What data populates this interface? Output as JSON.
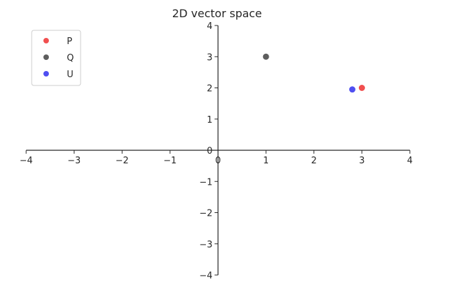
{
  "chart_data": {
    "type": "scatter",
    "title": "2D vector space",
    "xlabel": "",
    "ylabel": "",
    "xlim": [
      -4,
      4
    ],
    "ylim": [
      -4,
      4
    ],
    "x_ticks": [
      {
        "value": -4,
        "label": "−4"
      },
      {
        "value": -3,
        "label": "−3"
      },
      {
        "value": -2,
        "label": "−2"
      },
      {
        "value": -1,
        "label": "−1"
      },
      {
        "value": 0,
        "label": "0"
      },
      {
        "value": 1,
        "label": "1"
      },
      {
        "value": 2,
        "label": "2"
      },
      {
        "value": 3,
        "label": "3"
      },
      {
        "value": 4,
        "label": "4"
      }
    ],
    "y_ticks": [
      {
        "value": -4,
        "label": "−4"
      },
      {
        "value": -3,
        "label": "−3"
      },
      {
        "value": -2,
        "label": "−2"
      },
      {
        "value": -1,
        "label": "−1"
      },
      {
        "value": 0,
        "label": "0"
      },
      {
        "value": 1,
        "label": "1"
      },
      {
        "value": 2,
        "label": "2"
      },
      {
        "value": 3,
        "label": "3"
      },
      {
        "value": 4,
        "label": "4"
      }
    ],
    "grid": false,
    "legend_position": "top-left",
    "series": [
      {
        "name": "P",
        "color": "#f03c3c",
        "points": [
          {
            "x": 3,
            "y": 2
          }
        ]
      },
      {
        "name": "Q",
        "color": "#4d4d4d",
        "points": [
          {
            "x": 1,
            "y": 3
          }
        ]
      },
      {
        "name": "U",
        "color": "#3c3cf0",
        "points": [
          {
            "x": 2.8,
            "y": 1.95
          }
        ]
      }
    ]
  }
}
